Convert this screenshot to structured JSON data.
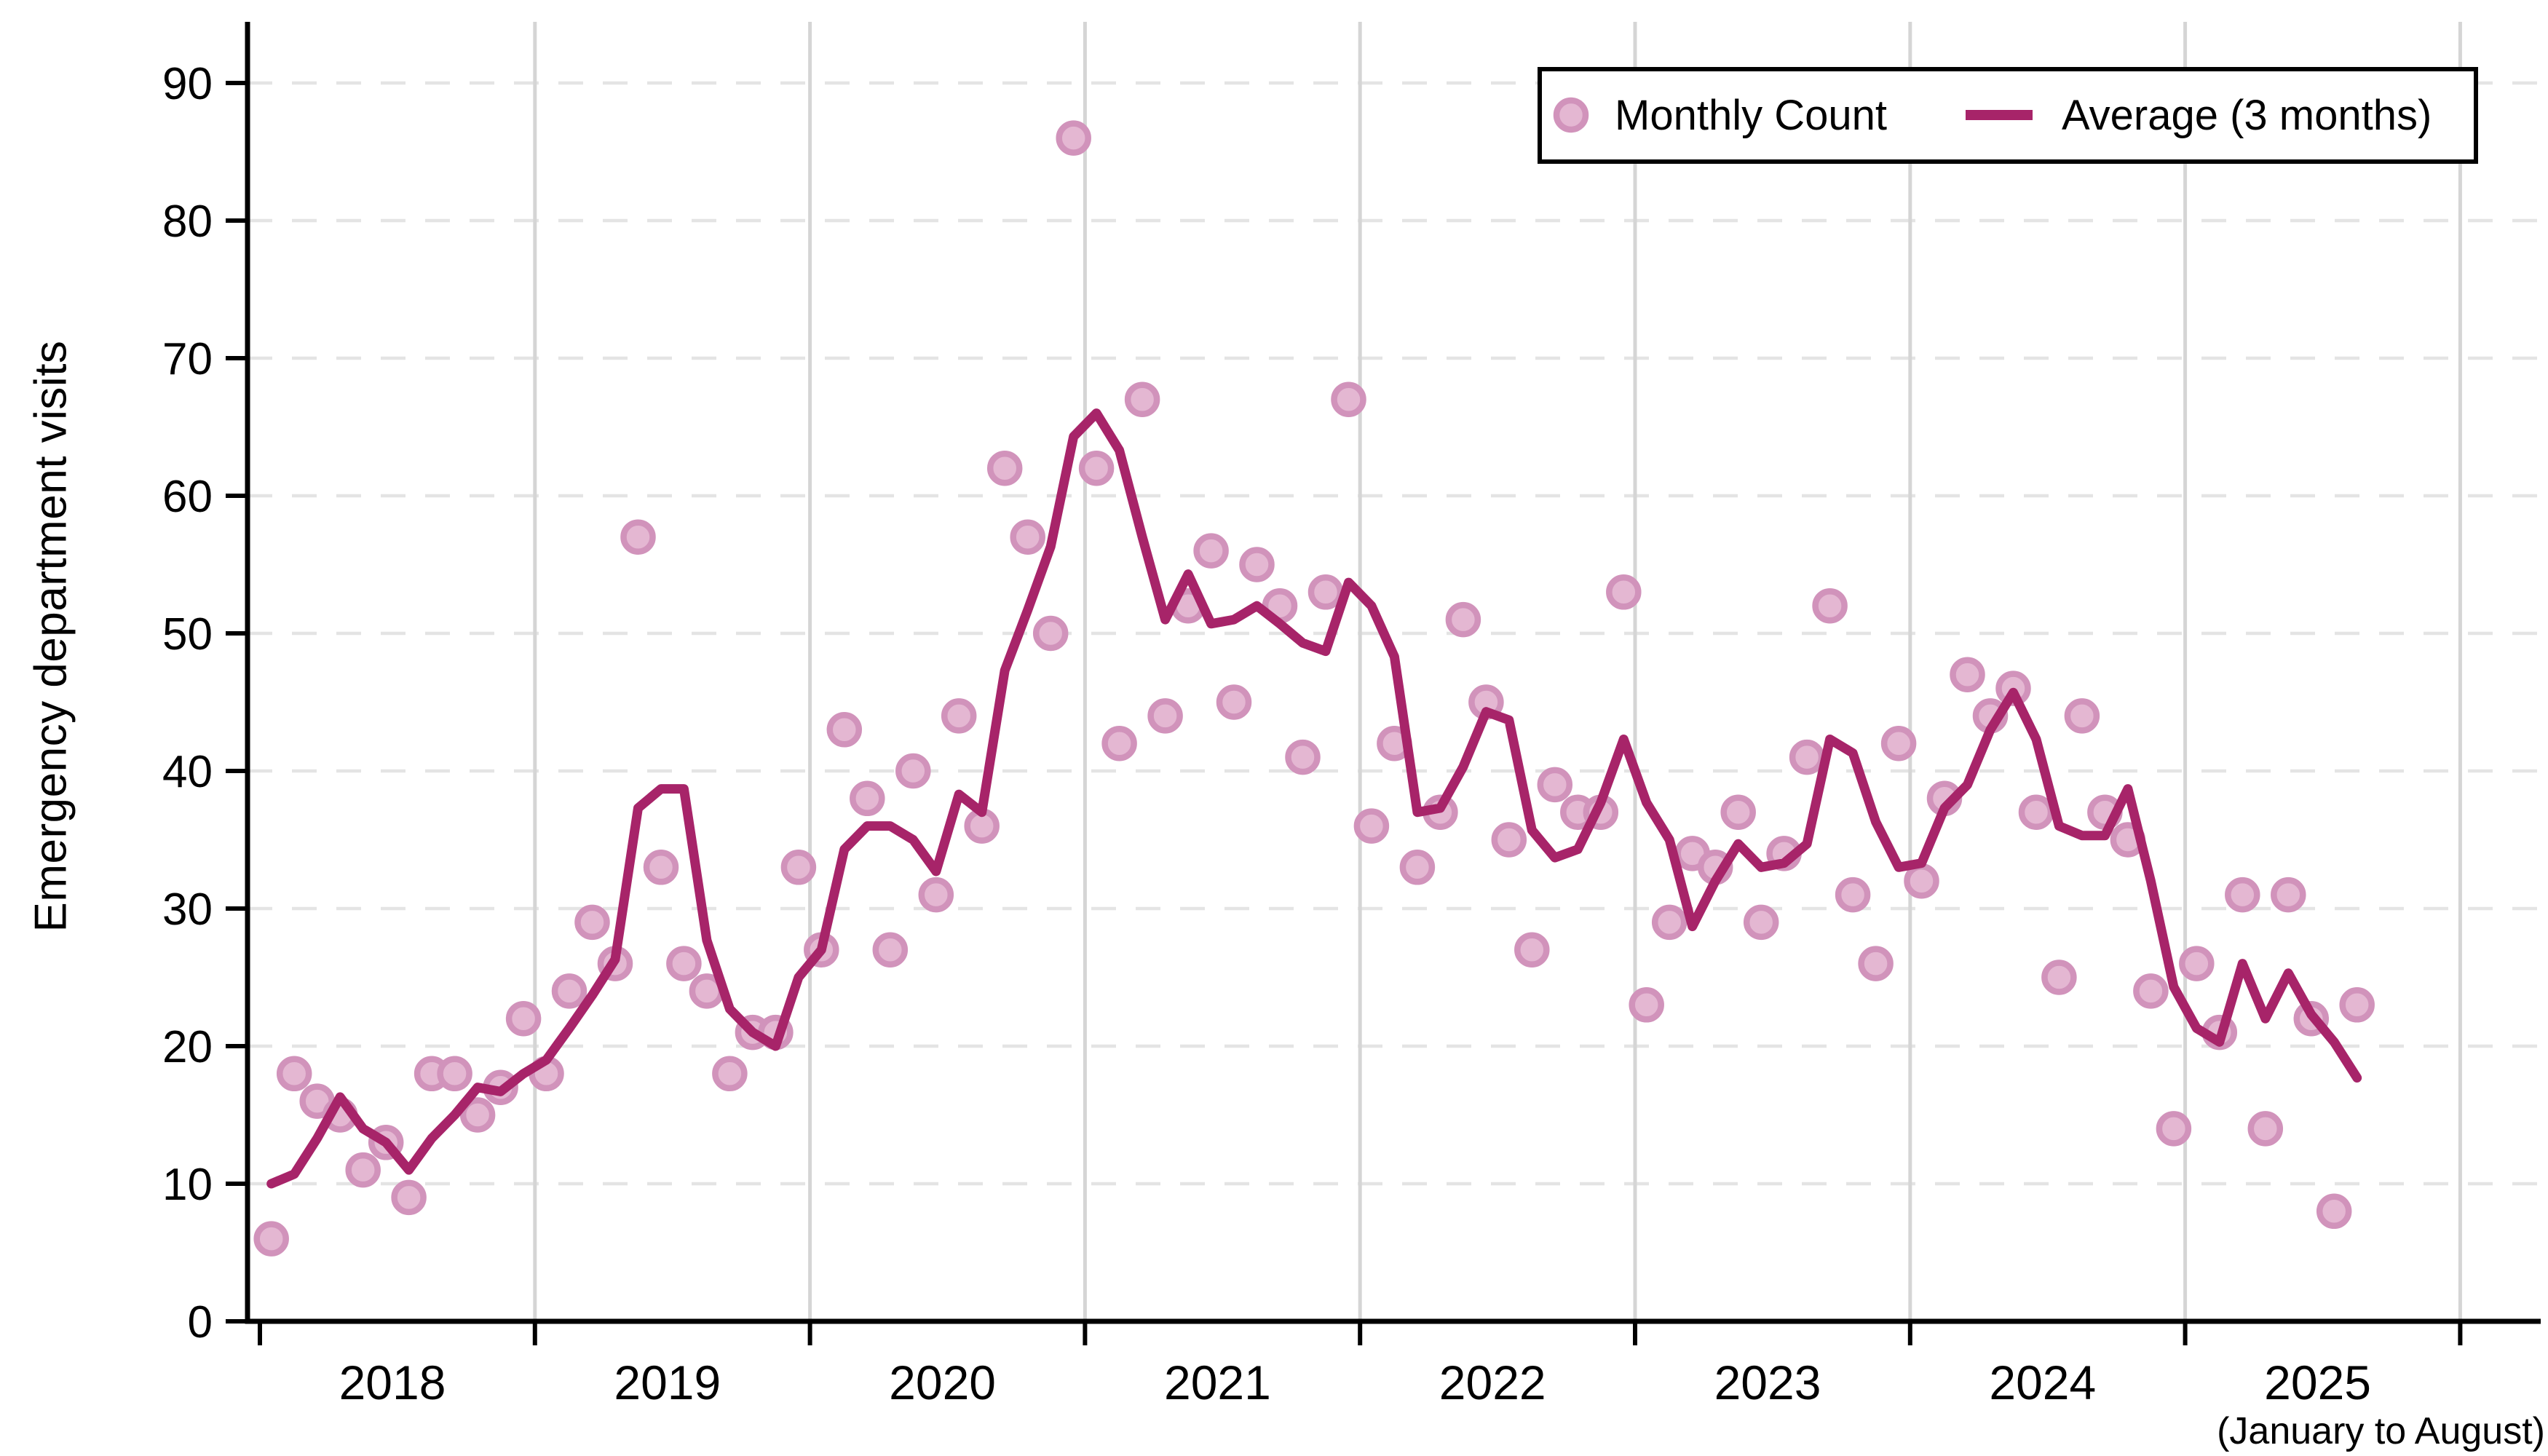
{
  "chart_data": {
    "type": "scatter+line",
    "title": "",
    "ylabel": "Emergency department visits",
    "xlabel": "",
    "x_note": "(January to August)",
    "ylim": [
      0,
      90
    ],
    "yticks": [
      0,
      10,
      20,
      30,
      40,
      50,
      60,
      70,
      80,
      90
    ],
    "year_labels": [
      "2018",
      "2019",
      "2020",
      "2021",
      "2022",
      "2023",
      "2024",
      "2025"
    ],
    "x_start": "2018-01",
    "x_end": "2025-08",
    "grid": "horizontal dashed + vertical solid at year boundaries",
    "legend": {
      "position": "top-right, framed box",
      "monthly_label": "Monthly Count",
      "average_label": "Average (3 months)"
    },
    "series": {
      "monthly": {
        "name": "Monthly Count",
        "values_by_year": {
          "2018": [
            6,
            18,
            16,
            15,
            11,
            13,
            9,
            18,
            18,
            15,
            17,
            22
          ],
          "2019": [
            18,
            24,
            29,
            26,
            57,
            33,
            26,
            24,
            18,
            21,
            21,
            33
          ],
          "2020": [
            27,
            43,
            38,
            27,
            40,
            31,
            44,
            36,
            62,
            57,
            50,
            86
          ],
          "2021": [
            62,
            42,
            67,
            44,
            52,
            56,
            45,
            55,
            52,
            41,
            53,
            67
          ],
          "2022": [
            36,
            42,
            33,
            37,
            51,
            45,
            35,
            27,
            39,
            37,
            37,
            53
          ],
          "2023": [
            23,
            29,
            34,
            33,
            37,
            29,
            34,
            41,
            52,
            31,
            26,
            42
          ],
          "2024": [
            32,
            38,
            47,
            44,
            46,
            37,
            25,
            44,
            37,
            35,
            24,
            14
          ],
          "2025": [
            26,
            21,
            31,
            14,
            31,
            22,
            8,
            23
          ]
        }
      },
      "average": {
        "name": "Average (3 months)",
        "window": "3-month moving average",
        "values_by_year": {
          "2018": [
            10.0,
            10.7,
            13.3,
            16.3,
            14.0,
            13.0,
            11.0,
            13.3,
            15.0,
            17.0,
            16.7,
            18.0
          ],
          "2019": [
            19.0,
            21.3,
            23.7,
            26.3,
            37.3,
            38.7,
            38.7,
            27.7,
            22.7,
            21.0,
            20.0,
            25.0
          ],
          "2020": [
            27.0,
            34.3,
            36.0,
            36.0,
            35.0,
            32.7,
            38.3,
            37.0,
            47.3,
            51.7,
            56.3,
            64.3
          ],
          "2021": [
            66.0,
            63.3,
            57.0,
            51.0,
            54.3,
            50.7,
            51.0,
            52.0,
            50.7,
            49.3,
            48.7,
            53.7
          ],
          "2022": [
            52.0,
            48.3,
            37.0,
            37.3,
            40.3,
            44.3,
            43.7,
            35.7,
            33.7,
            34.3,
            37.7,
            42.3
          ],
          "2023": [
            37.7,
            35.0,
            28.7,
            32.0,
            34.7,
            33.0,
            33.3,
            34.7,
            42.3,
            41.3,
            36.3,
            33.0
          ],
          "2024": [
            33.3,
            37.3,
            39.0,
            43.0,
            45.7,
            42.3,
            36.0,
            35.3,
            35.3,
            38.7,
            32.0,
            24.3
          ],
          "2025": [
            21.3,
            20.3,
            26.0,
            22.0,
            25.3,
            22.3,
            20.3,
            17.7
          ]
        }
      }
    },
    "colors": {
      "line": "#A72469",
      "marker_fill": "#E4B7D2",
      "marker_stroke": "#D193BB",
      "grid_h": "#E4E4E4",
      "grid_v": "#D5D5D5",
      "axis": "#000000",
      "legend_border": "#000000",
      "background": "#FFFFFF"
    }
  }
}
